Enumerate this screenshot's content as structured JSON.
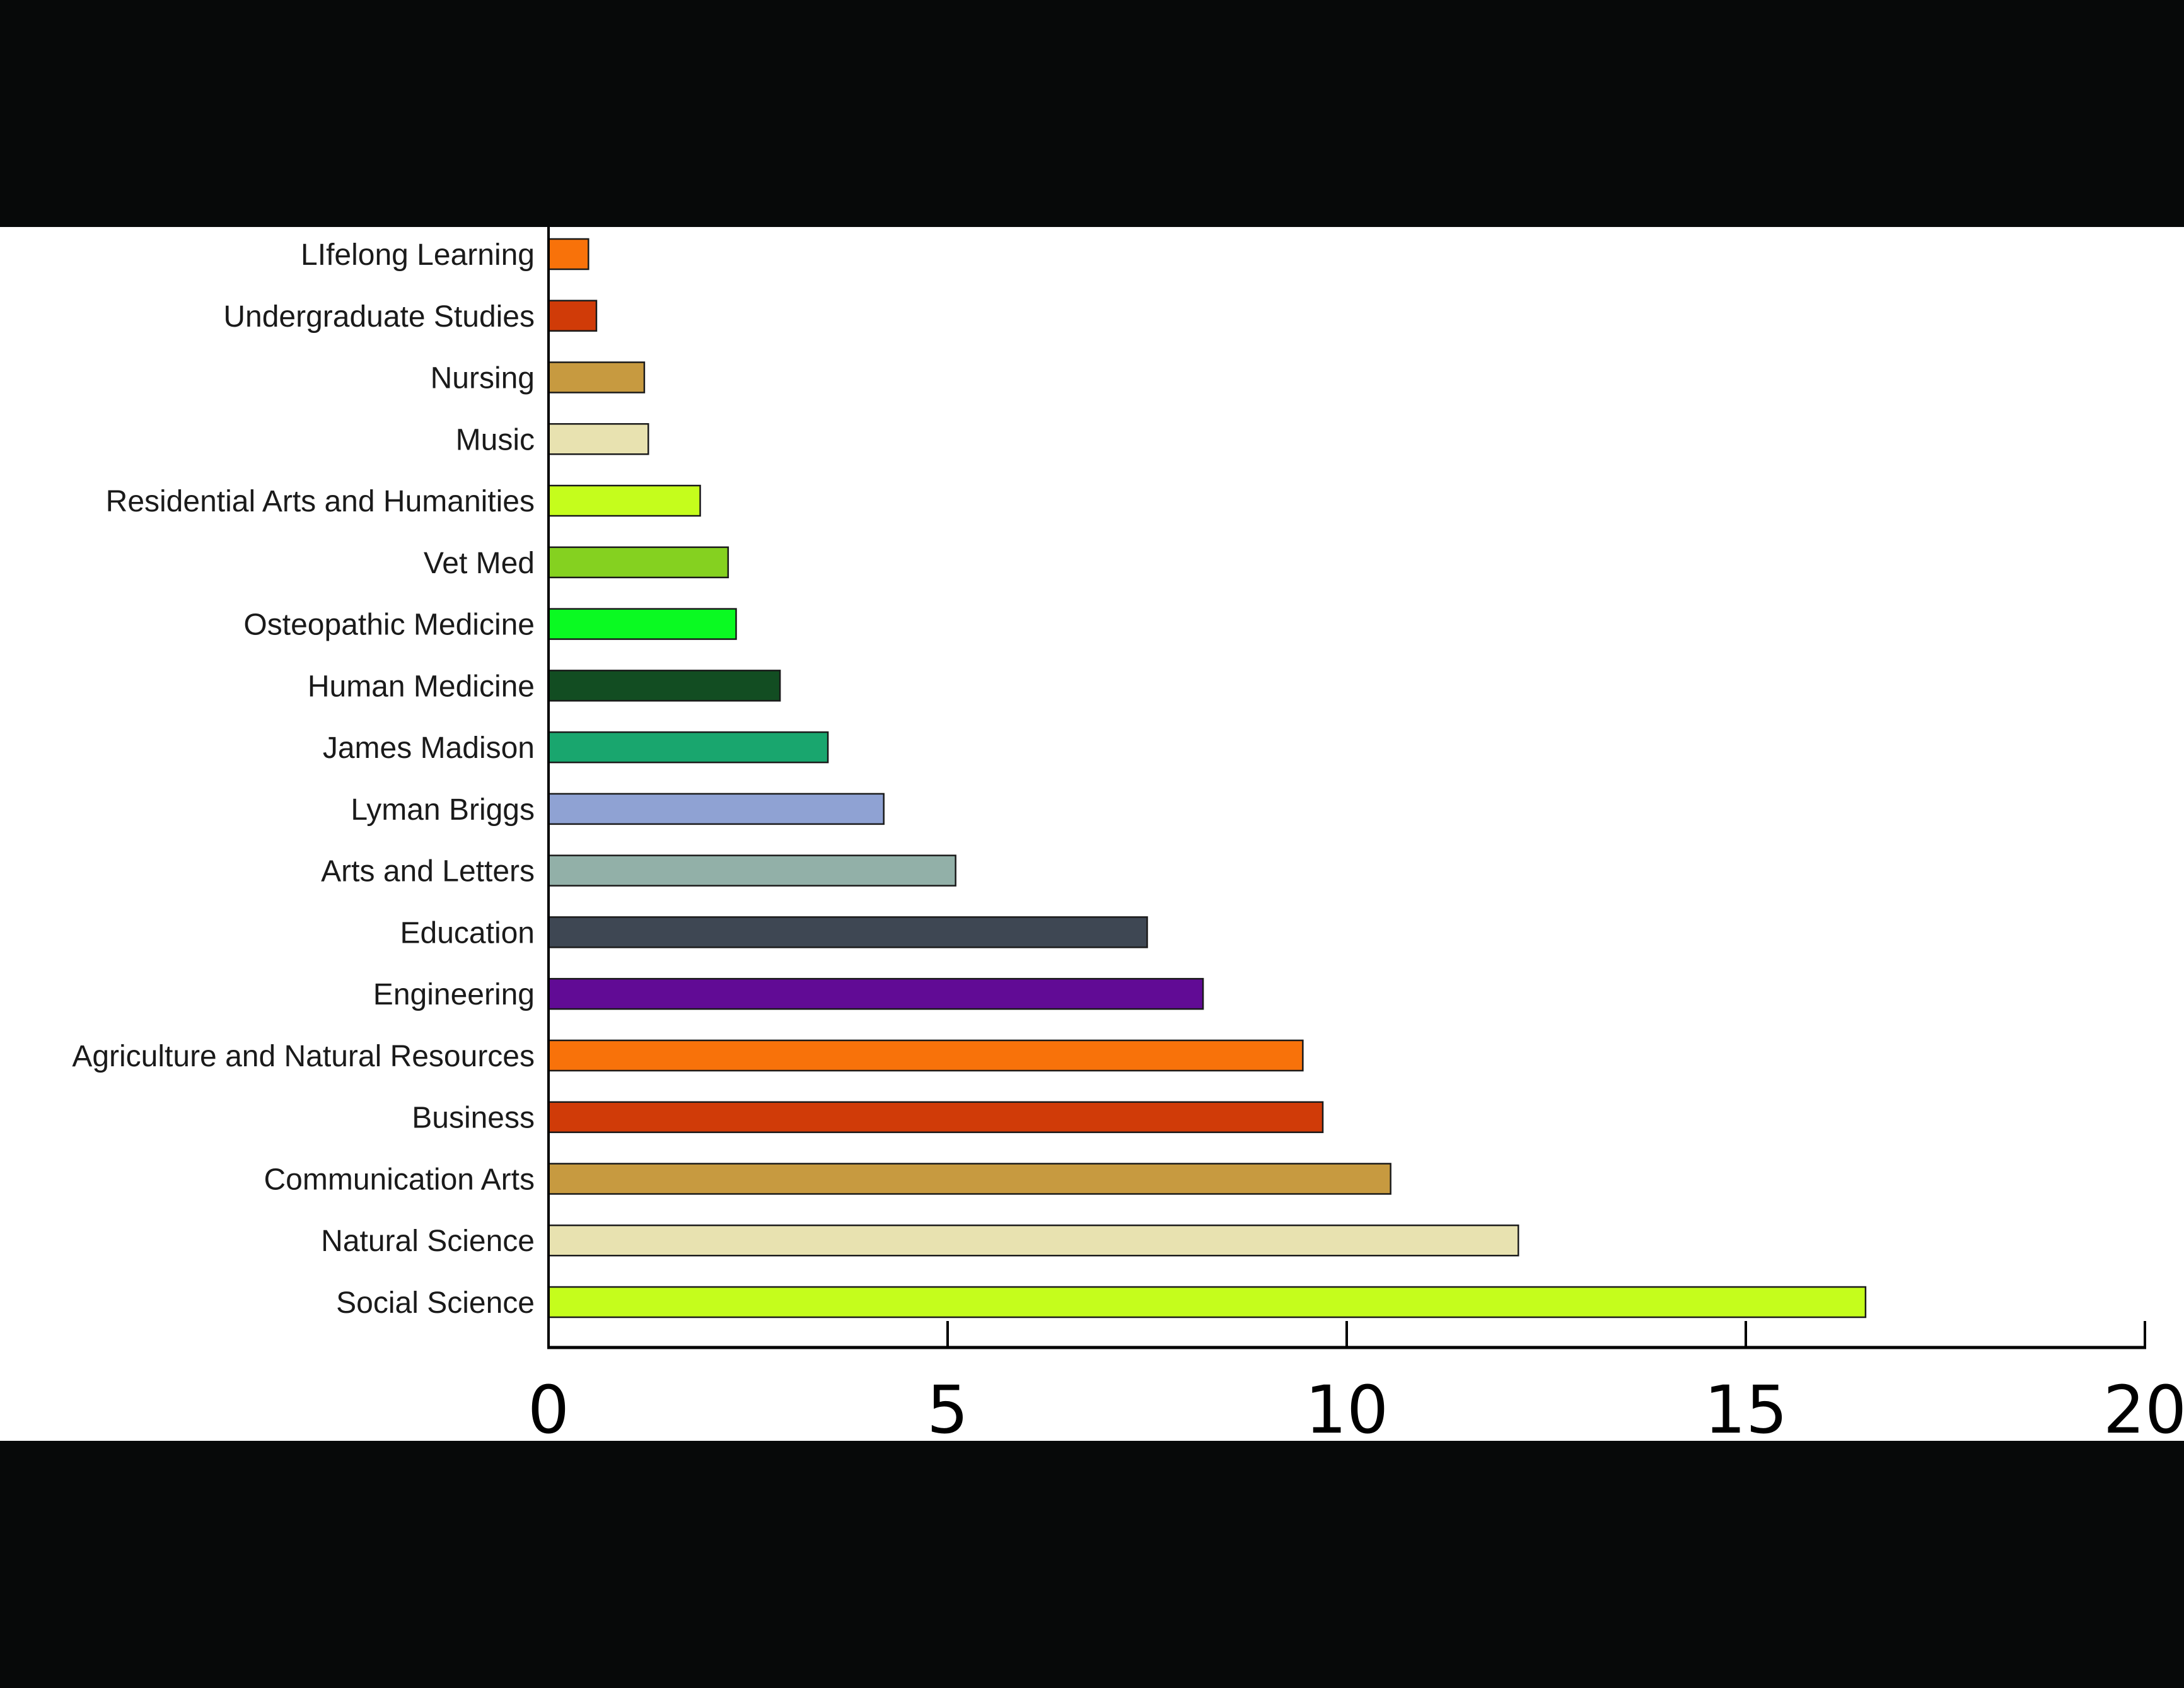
{
  "chart_data": {
    "type": "bar",
    "orientation": "horizontal",
    "categories": [
      "LIfelong Learning",
      "Undergraduate Studies",
      "Nursing",
      "Music",
      "Residential Arts and Humanities",
      "Vet Med",
      "Osteopathic Medicine",
      "Human Medicine",
      "James Madison",
      "Lyman Briggs",
      "Arts and Letters",
      "Education",
      "Engineering",
      "Agriculture and Natural Resources",
      "Business",
      "Communication Arts",
      "Natural Science",
      "Social Science"
    ],
    "values": [
      0.5,
      0.6,
      1.2,
      1.25,
      1.9,
      2.25,
      2.35,
      2.9,
      3.5,
      4.2,
      5.1,
      7.5,
      8.2,
      9.45,
      9.7,
      10.55,
      12.15,
      16.5
    ],
    "colors": [
      "#f8720a",
      "#d03b08",
      "#c79a40",
      "#e8e2b0",
      "#c5fd1c",
      "#85d120",
      "#0afa22",
      "#124d22",
      "#19a66e",
      "#8fa2d3",
      "#92b0a8",
      "#3e4753",
      "#610b95",
      "#f8720a",
      "#d03b08",
      "#c79a40",
      "#e8e2b0",
      "#c5fd1c"
    ],
    "xticks": [
      0,
      5,
      10,
      15,
      20
    ],
    "xlim": [
      0,
      20
    ],
    "title": "",
    "xlabel": "",
    "ylabel": ""
  }
}
